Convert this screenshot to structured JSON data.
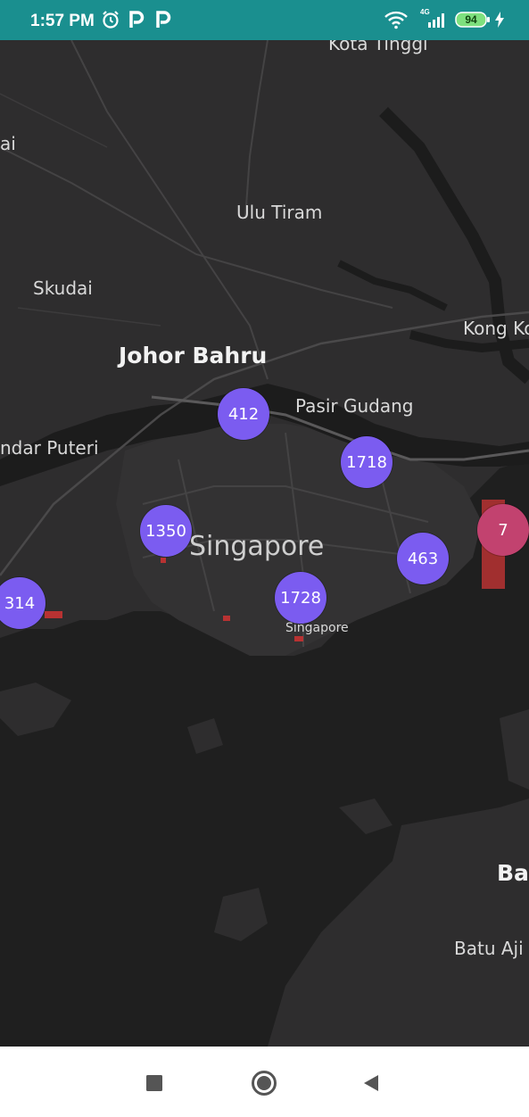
{
  "status_bar": {
    "time": "1:57 PM",
    "alarm_icon": "alarm-icon",
    "app_icons": [
      "p-icon",
      "p-icon"
    ],
    "wifi_icon": "wifi-icon",
    "network_type": "4G",
    "battery_level": "94",
    "charging_icon": "bolt-icon"
  },
  "map": {
    "place_labels": {
      "kota_tinggi": "Kota Tinggi",
      "ai": "ai",
      "ulu_tiram": "Ulu Tiram",
      "skudai": "Skudai",
      "kong_kong": "Kong Ko",
      "johor_bahru": "Johor Bahru",
      "pasir_gudang": "Pasir Gudang",
      "bandar_puteri": "ndar Puteri",
      "singapore_city": "Singapore",
      "singapore_small": "Singapore",
      "batam": "Ba",
      "batu_aji": "Batu Aji"
    },
    "clusters": [
      {
        "count": "412",
        "color": "#7b5cf0"
      },
      {
        "count": "1718",
        "color": "#7b5cf0"
      },
      {
        "count": "1350",
        "color": "#7b5cf0"
      },
      {
        "count": "7",
        "color": "#c2426f"
      },
      {
        "count": "463",
        "color": "#7b5cf0"
      },
      {
        "count": "314",
        "color": "#7b5cf0"
      },
      {
        "count": "1728",
        "color": "#7b5cf0"
      }
    ]
  },
  "nav_bar": {
    "recents_icon": "square-icon",
    "home_icon": "circle-icon",
    "back_icon": "triangle-back-icon"
  }
}
